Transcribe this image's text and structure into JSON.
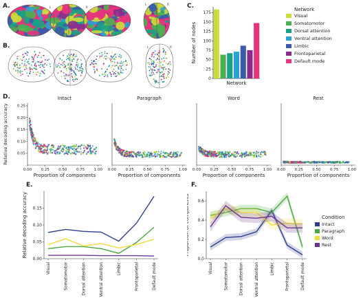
{
  "panel_labels": {
    "a": "A.",
    "b": "B.",
    "c": "C.",
    "d": "D.",
    "e": "E.",
    "f": "F."
  },
  "brain_letters": {
    "l": "L",
    "r": "R"
  },
  "networks": [
    {
      "name": "Visual",
      "color": "#cddc39"
    },
    {
      "name": "Somatomotor",
      "color": "#4caf50"
    },
    {
      "name": "Dorsal attention",
      "color": "#1aa086"
    },
    {
      "name": "Ventral attention",
      "color": "#29a3d4"
    },
    {
      "name": "Limbic",
      "color": "#3a5bab"
    },
    {
      "name": "Frontoparietal",
      "color": "#8e2a8e"
    },
    {
      "name": "Default mode",
      "color": "#e8337d"
    }
  ],
  "conditions": [
    {
      "name": "Intact",
      "color": "#2c3e8c"
    },
    {
      "name": "Paragraph",
      "color": "#49a83d"
    },
    {
      "name": "Word",
      "color": "#f3db3c"
    },
    {
      "name": "Rest",
      "color": "#6b3596"
    }
  ],
  "chart_data": [
    {
      "id": "C",
      "type": "bar",
      "categories": [
        "Visual",
        "Somatomotor",
        "Dorsal attention",
        "Ventral attention",
        "Limbic",
        "Frontoparietal",
        "Default mode"
      ],
      "values": [
        183,
        63,
        67,
        71,
        87,
        75,
        147
      ],
      "xlabel": "Network",
      "ylabel": "Number of nodes",
      "ylim": [
        0,
        190
      ],
      "yticks": [
        0,
        25,
        50,
        75,
        100,
        125,
        150,
        175
      ],
      "legend_title": "Network",
      "legend_placement": "right"
    },
    {
      "id": "D",
      "type": "scatter",
      "ylabel": "Relative decoding accuracy",
      "xlabel": "Proportion of components",
      "xlim": [
        0,
        1.05
      ],
      "ylim": [
        0,
        0.26
      ],
      "xticks": [
        0.0,
        0.25,
        0.5,
        0.75,
        1.0
      ],
      "yticks": [
        0.05,
        0.1,
        0.15,
        0.2,
        0.25
      ],
      "panels": [
        {
          "title": "Intact",
          "levels": {
            "decay": 0.2,
            "base": 0.065,
            "spread": 0.02
          }
        },
        {
          "title": "Paragraph",
          "levels": {
            "decay": 0.1,
            "base": 0.045,
            "spread": 0.012
          }
        },
        {
          "title": "Word",
          "levels": {
            "decay": 0.05,
            "base": 0.045,
            "spread": 0.012
          }
        },
        {
          "title": "Rest",
          "levels": {
            "decay": 0.002,
            "base": 0.012,
            "spread": 0.003
          }
        }
      ]
    },
    {
      "id": "E",
      "type": "line",
      "categories": [
        "Visual",
        "Somatomotor",
        "Dorsal attention",
        "Ventral attention",
        "Limbic",
        "Frontoparietal",
        "Default mode"
      ],
      "ylabel": "Relative decoding accuracy",
      "ylim": [
        0,
        0.2
      ],
      "yticks": [
        0.0,
        0.05,
        0.1,
        0.15
      ],
      "series": [
        {
          "name": "Intact",
          "values": [
            0.078,
            0.087,
            0.081,
            0.079,
            0.052,
            0.105,
            0.185
          ]
        },
        {
          "name": "Paragraph",
          "values": [
            0.03,
            0.036,
            0.036,
            0.03,
            0.016,
            0.048,
            0.093
          ]
        },
        {
          "name": "Word",
          "values": [
            0.042,
            0.059,
            0.038,
            0.045,
            0.032,
            0.042,
            0.058
          ]
        },
        {
          "name": "Rest",
          "values": [
            0.01,
            0.01,
            0.01,
            0.009,
            0.009,
            0.009,
            0.008
          ]
        }
      ]
    },
    {
      "id": "F",
      "type": "line",
      "categories": [
        "Visual",
        "Somatomotor",
        "Dorsal attention",
        "Ventral attention",
        "Limbic",
        "Frontoparietal",
        "Default mode"
      ],
      "ylabel": "Proportion of components",
      "ylim": [
        0,
        0.7
      ],
      "yticks": [
        0.0,
        0.2,
        0.4,
        0.6
      ],
      "legend_title": "Condition",
      "legend_placement": "right",
      "series": [
        {
          "name": "Intact",
          "values": [
            0.12,
            0.22,
            0.23,
            0.28,
            0.5,
            0.14,
            0.04
          ],
          "band": 0.035
        },
        {
          "name": "Paragraph",
          "values": [
            0.45,
            0.48,
            0.52,
            0.52,
            0.48,
            0.65,
            0.12
          ],
          "band": 0.04
        },
        {
          "name": "Word",
          "values": [
            0.42,
            0.52,
            0.48,
            0.48,
            0.35,
            0.37,
            0.36
          ],
          "band": 0.05
        },
        {
          "name": "Rest",
          "values": [
            0.33,
            0.55,
            0.43,
            0.42,
            0.44,
            0.32,
            0.32
          ],
          "band": 0.05
        }
      ]
    }
  ]
}
